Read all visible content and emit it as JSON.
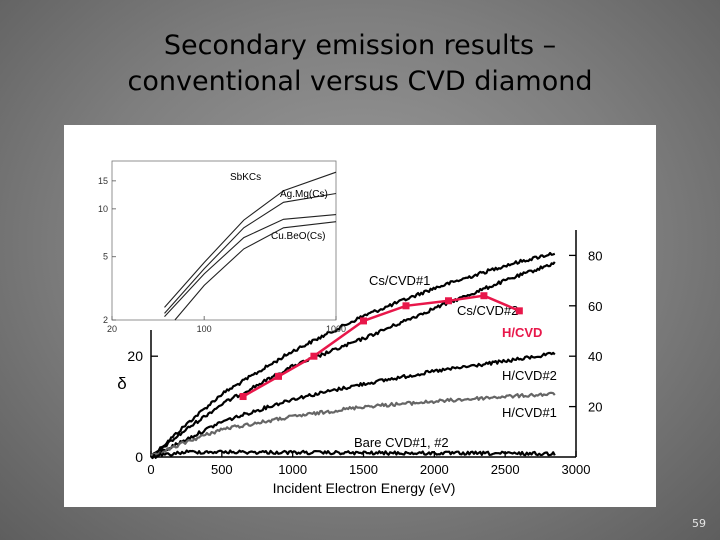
{
  "slide": {
    "title_line1": "Secondary emission results –",
    "title_line2": "conventional versus CVD diamond",
    "page_number": "59"
  },
  "colors": {
    "primary": "#000000",
    "highlight": "#e8174a",
    "inset_line": "#222222"
  },
  "chart_data": [
    {
      "type": "line",
      "xlabel": "Incident Electron Energy (eV)",
      "ylabel": "δ",
      "xlim": [
        0,
        3000
      ],
      "ylim_left": [
        0,
        50
      ],
      "ylim_right": [
        0,
        100
      ],
      "x_ticks": [
        0,
        500,
        1000,
        1500,
        2000,
        2500,
        3000
      ],
      "y_ticks_left": [
        0,
        20,
        40
      ],
      "y_ticks_right": [
        20,
        40,
        60,
        80
      ],
      "grid": false,
      "series": [
        {
          "name": "Cs/CVD#1",
          "label": "Cs/CVD#1",
          "axis": "right",
          "style": "noisy-black",
          "x": [
            0,
            250,
            500,
            1000,
            1500,
            2000,
            2500,
            2850
          ],
          "y": [
            0,
            13,
            25,
            42,
            56,
            67,
            76,
            81
          ]
        },
        {
          "name": "Cs/CVD#2",
          "label": "Cs/CVD#2",
          "axis": "right",
          "style": "noisy-black",
          "x": [
            0,
            250,
            500,
            1000,
            1500,
            2000,
            2500,
            2850
          ],
          "y": [
            0,
            11,
            21,
            36,
            47,
            59,
            70,
            77
          ]
        },
        {
          "name": "H/CVD",
          "label": "H/CVD",
          "axis": "left",
          "style": "markers-red",
          "x": [
            650,
            900,
            1150,
            1500,
            1800,
            2100,
            2350,
            2600
          ],
          "y": [
            12,
            16,
            20,
            27,
            30,
            31,
            32,
            29
          ]
        },
        {
          "name": "H/CVD#2",
          "label": "H/CVD#2",
          "axis": "right",
          "style": "noisy-black",
          "x": [
            0,
            250,
            500,
            1000,
            1500,
            2000,
            2500,
            2850
          ],
          "y": [
            0,
            7,
            14,
            23,
            29,
            34,
            38,
            41
          ]
        },
        {
          "name": "H/CVD#1",
          "label": "H/CVD#1",
          "axis": "right",
          "style": "noisy-gray",
          "x": [
            0,
            250,
            500,
            1000,
            1500,
            2000,
            2500,
            2850
          ],
          "y": [
            0,
            6,
            11,
            16,
            20,
            22,
            24,
            25
          ]
        },
        {
          "name": "Bare CVD#1, #2",
          "label": "Bare CVD#1, #2",
          "axis": "right",
          "style": "noisy-black",
          "x": [
            0,
            250,
            500,
            1000,
            1500,
            2000,
            2500,
            2850
          ],
          "y": [
            0,
            2,
            2,
            1.8,
            1.6,
            1.5,
            1.4,
            1.3
          ]
        }
      ]
    },
    {
      "type": "line",
      "inset": true,
      "xscale": "log",
      "yscale": "log",
      "xlim": [
        20,
        1000
      ],
      "ylim": [
        2,
        20
      ],
      "x_ticks": [
        20,
        100,
        1000
      ],
      "y_ticks": [
        2,
        5,
        10,
        15
      ],
      "series": [
        {
          "name": "SbKCs",
          "label": "SbKCs",
          "x": [
            50,
            100,
            200,
            400,
            1000
          ],
          "y": [
            2.4,
            4.6,
            8.5,
            13,
            17
          ]
        },
        {
          "name": "Ag.Mg(Cs)",
          "label": "Ag.Mg(Cs)",
          "x": [
            50,
            100,
            200,
            400,
            1000
          ],
          "y": [
            2.2,
            4.2,
            7.6,
            11,
            12.5
          ]
        },
        {
          "name": "Cu.BeO(Cs)",
          "label": "Cu.BeO(Cs)",
          "x": [
            50,
            100,
            200,
            400,
            1000
          ],
          "y": [
            2.1,
            3.9,
            6.6,
            8.6,
            9.2
          ]
        },
        {
          "name": "Cu.BeO(Cs) lower",
          "label": "",
          "x": [
            60,
            100,
            200,
            400,
            1000
          ],
          "y": [
            2.0,
            3.3,
            5.6,
            7.6,
            8.3
          ]
        }
      ]
    }
  ]
}
